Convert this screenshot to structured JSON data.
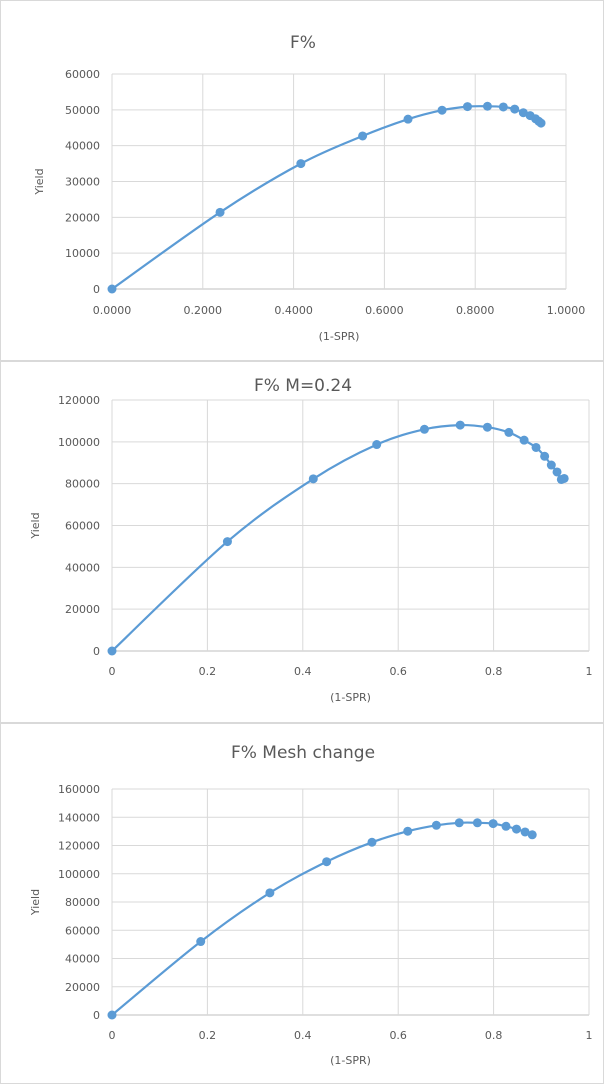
{
  "colors": {
    "series": "#5b9bd5",
    "grid": "#d9d9d9",
    "text": "#595959"
  },
  "chart_data": [
    {
      "type": "scatter",
      "title": "F%",
      "xlabel": "(1-SPR)",
      "ylabel": "Yield",
      "xlim": [
        0,
        1
      ],
      "ylim": [
        0,
        60000
      ],
      "xticks": [
        "0.0000",
        "0.2000",
        "0.4000",
        "0.6000",
        "0.8000",
        "1.0000"
      ],
      "yticks": [
        "0",
        "10000",
        "20000",
        "30000",
        "40000",
        "50000",
        "60000"
      ],
      "grid": true,
      "smooth_line": true,
      "series": [
        {
          "x": [
            0,
            0.238,
            0.416,
            0.552,
            0.652,
            0.727,
            0.783,
            0.827,
            0.862,
            0.887,
            0.906,
            0.921,
            0.933,
            0.94,
            0.945
          ],
          "y": [
            0,
            21400,
            35000,
            42700,
            47400,
            49900,
            50900,
            51000,
            50800,
            50200,
            49200,
            48400,
            47500,
            46800,
            46300
          ]
        }
      ]
    },
    {
      "type": "scatter",
      "title": "F% M=0.24",
      "xlabel": "(1-SPR)",
      "ylabel": "Yield",
      "xlim": [
        0,
        1
      ],
      "ylim": [
        0,
        120000
      ],
      "xticks": [
        "0",
        "0.2",
        "0.4",
        "0.6",
        "0.8",
        "1"
      ],
      "yticks": [
        "0",
        "20000",
        "40000",
        "60000",
        "80000",
        "100000",
        "120000"
      ],
      "grid": true,
      "smooth_line": true,
      "series": [
        {
          "x": [
            0,
            0.242,
            0.422,
            0.555,
            0.655,
            0.73,
            0.787,
            0.832,
            0.864,
            0.889,
            0.907,
            0.921,
            0.933,
            0.942,
            0.948
          ],
          "y": [
            0,
            52300,
            82300,
            98700,
            106000,
            108000,
            107000,
            104500,
            100800,
            97300,
            93100,
            88900,
            85600,
            82000,
            82500
          ]
        }
      ]
    },
    {
      "type": "scatter",
      "title": "F% Mesh change",
      "xlabel": "(1-SPR)",
      "ylabel": "Yield",
      "xlim": [
        0,
        1
      ],
      "ylim": [
        0,
        160000
      ],
      "xticks": [
        "0",
        "0.2",
        "0.4",
        "0.6",
        "0.8",
        "1"
      ],
      "yticks": [
        "0",
        "20000",
        "40000",
        "60000",
        "80000",
        "100000",
        "120000",
        "140000",
        "160000"
      ],
      "grid": true,
      "smooth_line": true,
      "series": [
        {
          "x": [
            0,
            0.186,
            0.331,
            0.45,
            0.545,
            0.62,
            0.68,
            0.728,
            0.766,
            0.799,
            0.826,
            0.848,
            0.866,
            0.881
          ],
          "y": [
            0,
            52000,
            86500,
            108500,
            122300,
            130100,
            134300,
            136100,
            136100,
            135500,
            133600,
            131600,
            129600,
            127600
          ]
        }
      ]
    }
  ]
}
